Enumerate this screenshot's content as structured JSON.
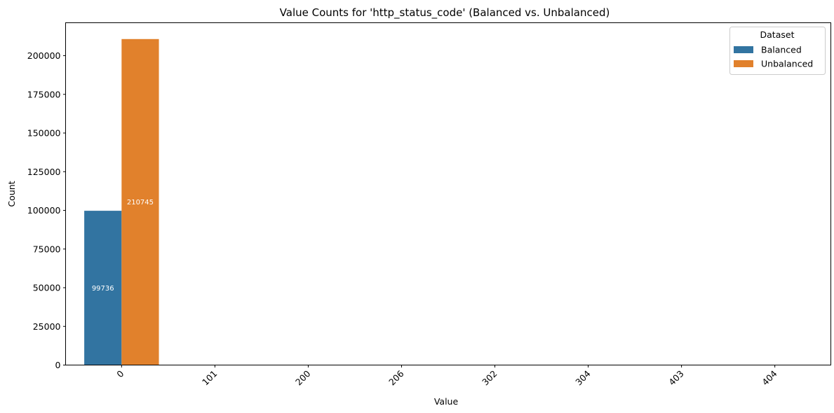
{
  "chart_data": {
    "type": "bar",
    "title": "Value Counts for 'http_status_code' (Balanced vs. Unbalanced)",
    "xlabel": "Value",
    "ylabel": "Count",
    "categories": [
      "0",
      "101",
      "200",
      "206",
      "302",
      "304",
      "403",
      "404"
    ],
    "series": [
      {
        "name": "Balanced",
        "color": "#3274a1",
        "values": [
          99736,
          0,
          0,
          0,
          0,
          0,
          0,
          0
        ]
      },
      {
        "name": "Unbalanced",
        "color": "#e1812c",
        "values": [
          210745,
          0,
          0,
          0,
          0,
          0,
          0,
          0
        ]
      }
    ],
    "data_labels": [
      "99736",
      "210745"
    ],
    "yticks": [
      "0",
      "25000",
      "50000",
      "75000",
      "100000",
      "125000",
      "150000",
      "175000",
      "200000"
    ],
    "ylim": [
      0,
      221282
    ],
    "grid": false,
    "legend": {
      "title": "Dataset",
      "position": "top-right"
    }
  }
}
